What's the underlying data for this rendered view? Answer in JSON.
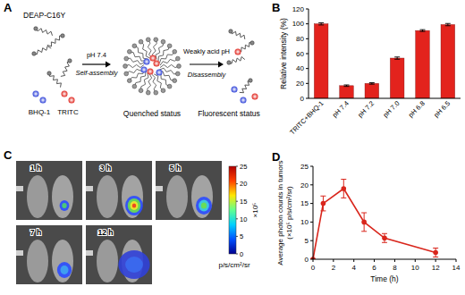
{
  "panel_a": {
    "label": "A",
    "polymer": "DEAP-C16Y",
    "quencher": "BHQ-1",
    "dye": "TRITC",
    "step1_top": "pH 7.4",
    "step1_bottom": "Self-assembly",
    "state1": "Quenched status",
    "step2_top": "Weakly acid pH",
    "step2_bottom": "Disassembly",
    "state2": "Fluorescent status"
  },
  "panel_c": {
    "label": "C",
    "times": [
      "1 h",
      "3 h",
      "5 h",
      "7 h",
      "12 h"
    ],
    "colorbar": {
      "range": [
        0,
        25
      ],
      "ticks": [
        0,
        5,
        10,
        15,
        20,
        25
      ],
      "scale_label": "×10⁵",
      "unit": "p/s/cm²/sr"
    }
  },
  "chart_data": [
    {
      "type": "bar",
      "title": "B",
      "categories": [
        "TRITC+BHQ-1",
        "pH 7.4",
        "pH 7.2",
        "pH 7.0",
        "pH 6.8",
        "pH 6.5"
      ],
      "values": [
        100,
        17,
        20,
        54,
        91,
        99
      ],
      "errors": [
        1.5,
        1,
        1,
        1.5,
        1.2,
        1.5
      ],
      "color": "#e3231d",
      "ylim": [
        0,
        120
      ],
      "yticks": [
        0,
        20,
        40,
        60,
        80,
        100,
        120
      ],
      "ylabel": "Relative intensity (%)"
    },
    {
      "type": "line",
      "title": "D",
      "x": [
        0,
        1,
        3,
        5,
        7,
        12
      ],
      "values": [
        0,
        15,
        19,
        10,
        5.7,
        1.8
      ],
      "errors": [
        0,
        2,
        2.5,
        2.5,
        1.2,
        1.2
      ],
      "color": "#d9261c",
      "marker": "circle",
      "xlim": [
        0,
        14
      ],
      "xticks": [
        0,
        2,
        4,
        6,
        8,
        10,
        12,
        14
      ],
      "ylim": [
        0,
        25
      ],
      "yticks": [
        0,
        5,
        10,
        15,
        20,
        25
      ],
      "xlabel": "Time (h)",
      "ylabel": [
        "Average photon counts in tumors",
        "(×10⁵ p/s/cm²/sr)"
      ]
    }
  ]
}
